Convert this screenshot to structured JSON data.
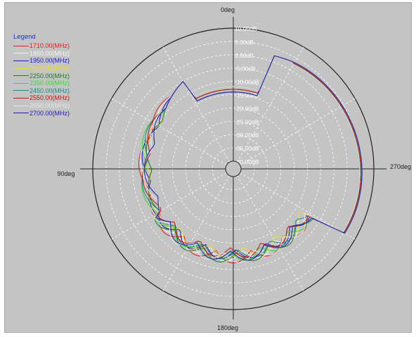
{
  "chart_data": {
    "type": "polar-line",
    "title": "",
    "angle_labels": [
      "0deg",
      "90deg",
      "180deg",
      "270deg"
    ],
    "radial_unit": "dB",
    "radial_range": [
      -40,
      10
    ],
    "radial_ticks": [
      "10.00dB",
      "5.00dB",
      "0.00dB",
      "-5.00dB",
      "-10.00dB",
      "-15.00dB",
      "-20.00dB",
      "-25.00dB",
      "-30.00dB",
      "-35.00dB",
      "-40.00dB"
    ],
    "angle_direction": "counterclockwise, 0deg at top, 90deg at left",
    "grid": true,
    "legend_title": "Legend",
    "legend_position": "top-left",
    "series": [
      {
        "name": "1710.00(MHz)",
        "color": "#e02020",
        "variant": 0
      },
      {
        "name": "1850.00(MHz)",
        "color": "#f4f4f4",
        "variant": 1
      },
      {
        "name": "1950.00(MHz)",
        "color": "#1a1acc",
        "variant": 2
      },
      {
        "name": "2100.00(MHz)",
        "color": "#e8e020",
        "variant": 3
      },
      {
        "name": "2250.00(MHz)",
        "color": "#1f7a1f",
        "variant": 4
      },
      {
        "name": "2350.00(MHz)",
        "color": "#38d838",
        "variant": 5
      },
      {
        "name": "2450.00(MHz)",
        "color": "#1a8a8a",
        "variant": 6
      },
      {
        "name": "2550.00(MHz)",
        "color": "#cc1010",
        "variant": 7
      },
      {
        "name": "2650.00(MHz)",
        "color": "#e6e6e6",
        "variant": 8
      },
      {
        "name": "2700.00(MHz)",
        "color": "#2020b0",
        "variant": 9
      }
    ]
  }
}
